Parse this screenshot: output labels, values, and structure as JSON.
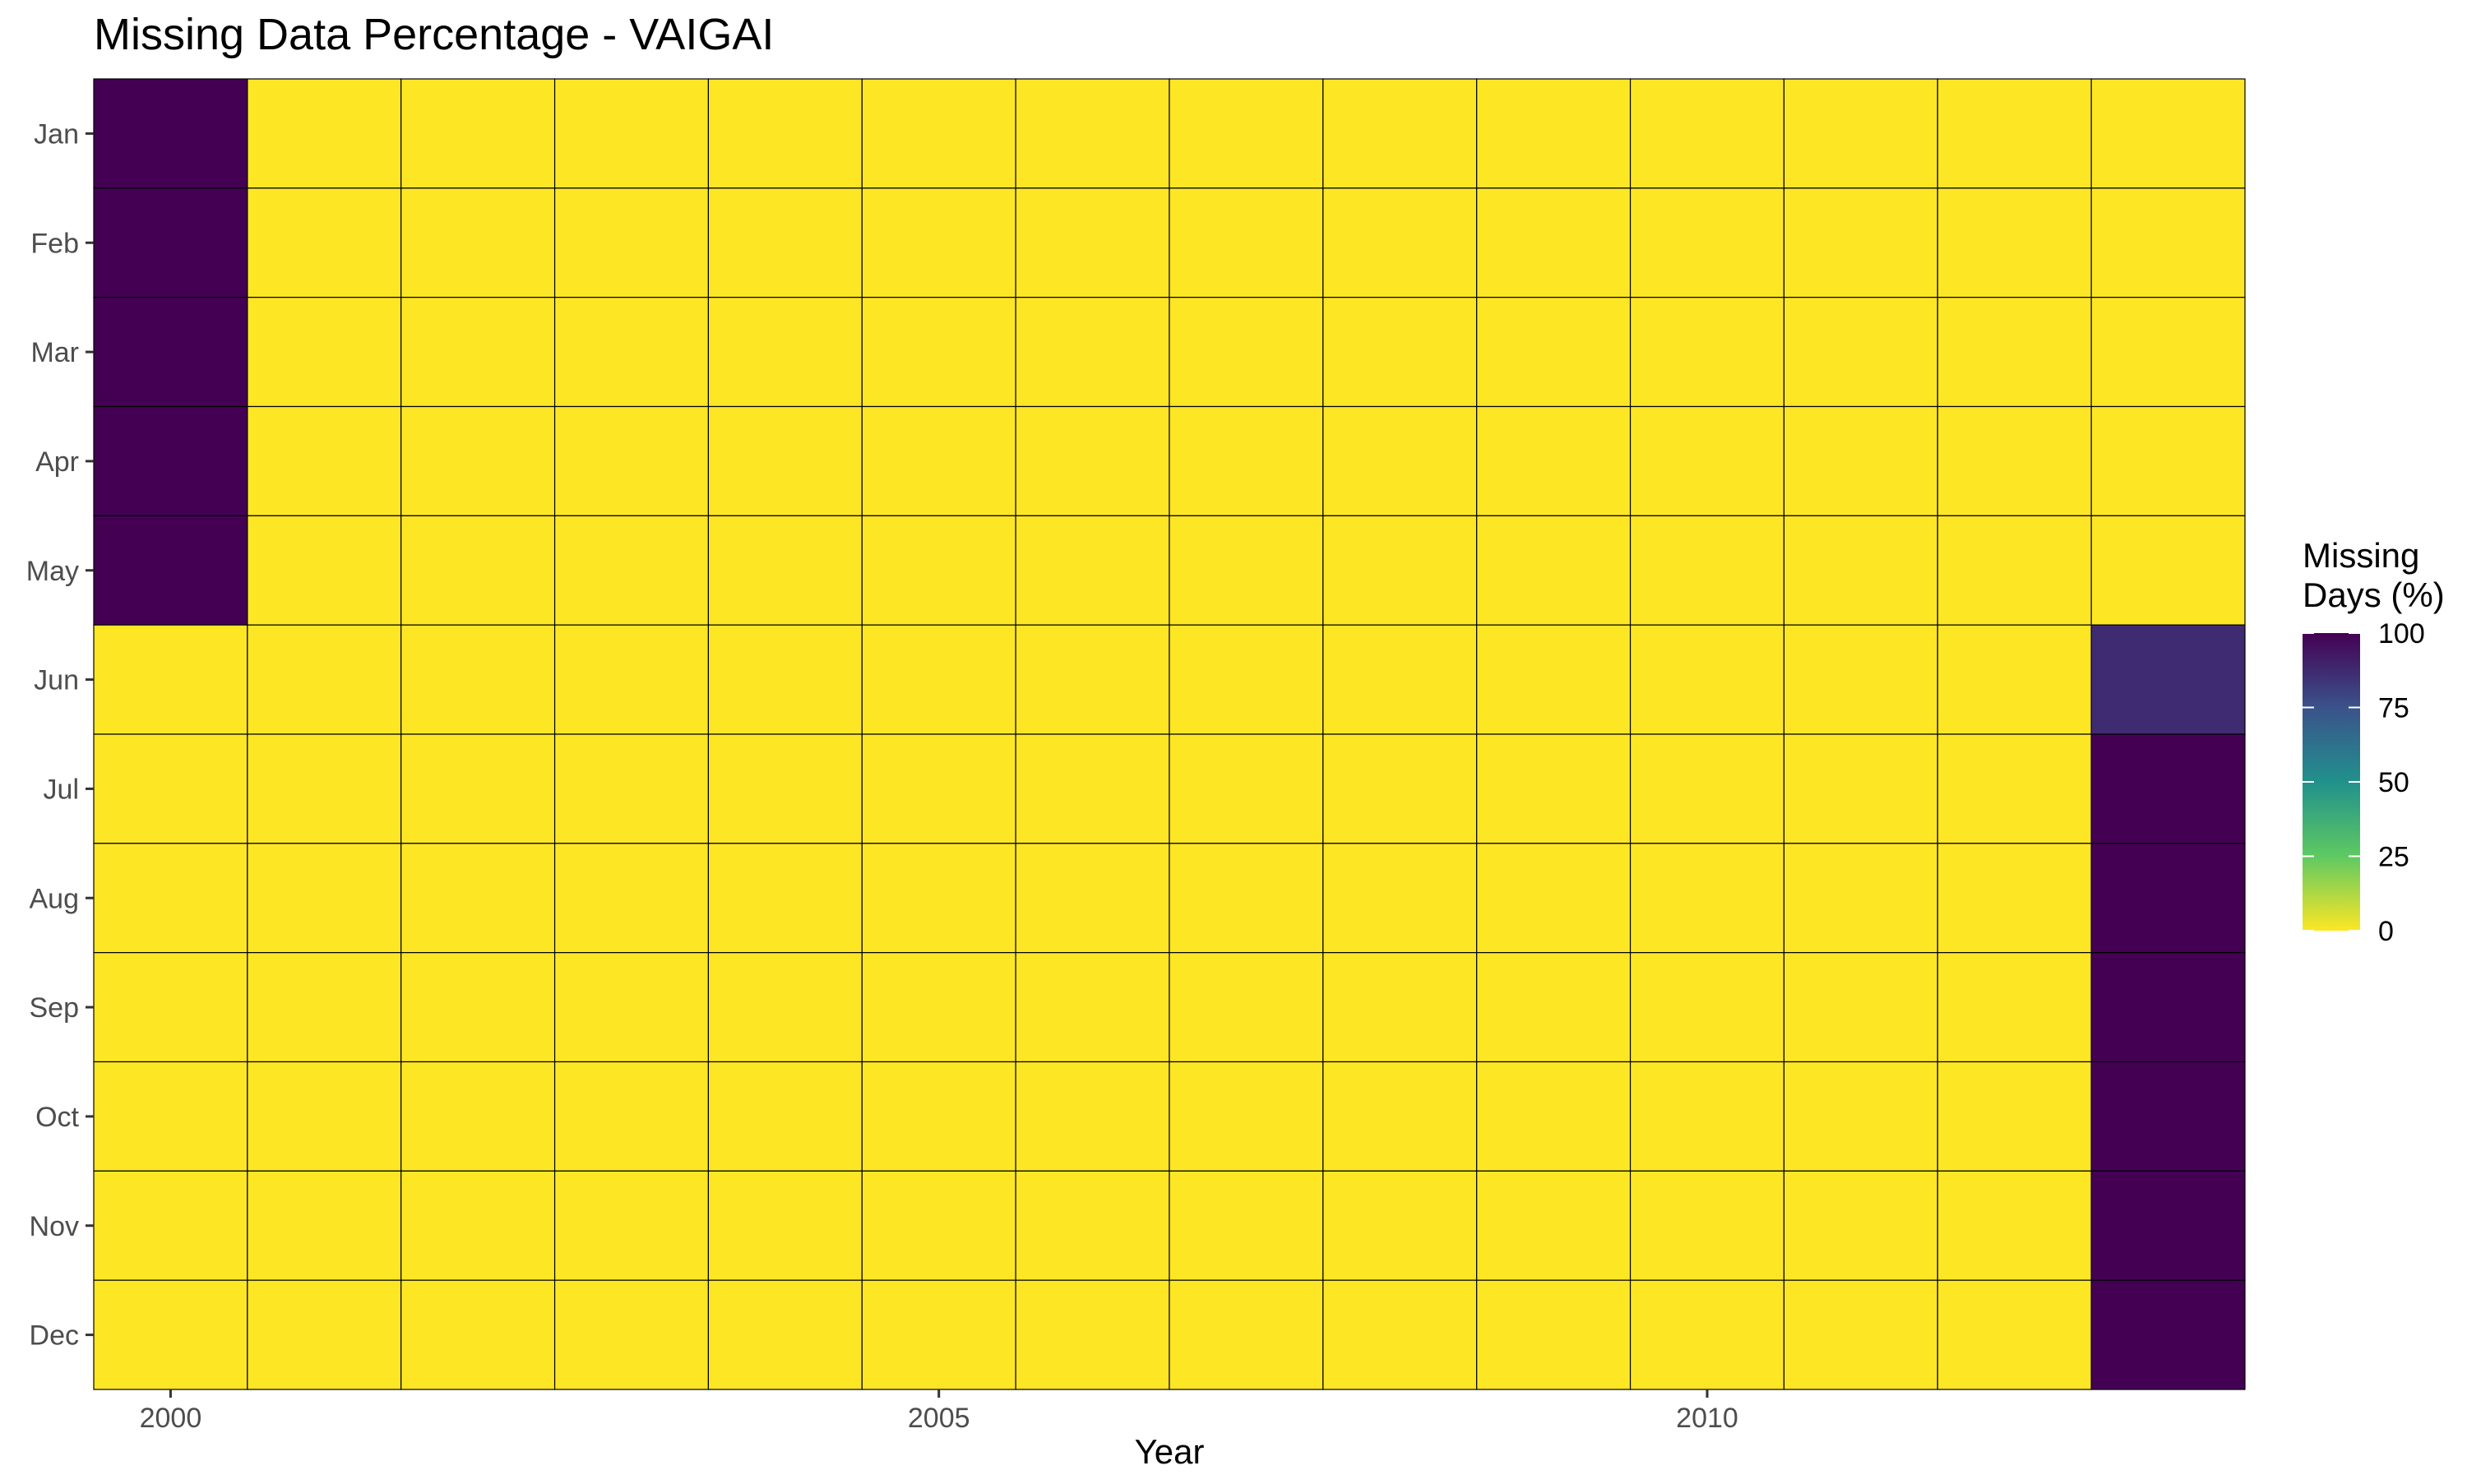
{
  "chart_data": {
    "type": "heatmap",
    "title": "Missing Data Percentage - VAIGAI",
    "xlabel": "Year",
    "ylabel": "",
    "x": [
      2000,
      2001,
      2002,
      2003,
      2004,
      2005,
      2006,
      2007,
      2008,
      2009,
      2010,
      2011,
      2012,
      2013
    ],
    "x_tick_labels": [
      "2000",
      "2005",
      "2010"
    ],
    "x_tick_values": [
      2000,
      2005,
      2010
    ],
    "y": [
      "Jan",
      "Feb",
      "Mar",
      "Apr",
      "May",
      "Jun",
      "Jul",
      "Aug",
      "Sep",
      "Oct",
      "Nov",
      "Dec"
    ],
    "values_by_month": [
      [
        100,
        0,
        0,
        0,
        0,
        0,
        0,
        0,
        0,
        0,
        0,
        0,
        0,
        0
      ],
      [
        100,
        0,
        0,
        0,
        0,
        0,
        0,
        0,
        0,
        0,
        0,
        0,
        0,
        0
      ],
      [
        100,
        0,
        0,
        0,
        0,
        0,
        0,
        0,
        0,
        0,
        0,
        0,
        0,
        0
      ],
      [
        100,
        0,
        0,
        0,
        0,
        0,
        0,
        0,
        0,
        0,
        0,
        0,
        0,
        0
      ],
      [
        100,
        0,
        0,
        0,
        0,
        0,
        0,
        0,
        0,
        0,
        0,
        0,
        0,
        0
      ],
      [
        0,
        0,
        0,
        0,
        0,
        0,
        0,
        0,
        0,
        0,
        0,
        0,
        0,
        87
      ],
      [
        0,
        0,
        0,
        0,
        0,
        0,
        0,
        0,
        0,
        0,
        0,
        0,
        0,
        100
      ],
      [
        0,
        0,
        0,
        0,
        0,
        0,
        0,
        0,
        0,
        0,
        0,
        0,
        0,
        100
      ],
      [
        0,
        0,
        0,
        0,
        0,
        0,
        0,
        0,
        0,
        0,
        0,
        0,
        0,
        100
      ],
      [
        0,
        0,
        0,
        0,
        0,
        0,
        0,
        0,
        0,
        0,
        0,
        0,
        0,
        100
      ],
      [
        0,
        0,
        0,
        0,
        0,
        0,
        0,
        0,
        0,
        0,
        0,
        0,
        0,
        100
      ],
      [
        0,
        0,
        0,
        0,
        0,
        0,
        0,
        0,
        0,
        0,
        0,
        0,
        0,
        100
      ]
    ],
    "legend": {
      "title_lines": [
        "Missing",
        "Days (%)"
      ],
      "ticks": [
        100,
        75,
        50,
        25,
        0
      ],
      "range": [
        0,
        100
      ],
      "colormap": "viridis (reversed: 0 = yellow, 100 = dark purple)",
      "placement": "right"
    },
    "grid": false,
    "colors": {
      "low": "#fde725",
      "high": "#440154",
      "cell_border": "#000000"
    }
  }
}
